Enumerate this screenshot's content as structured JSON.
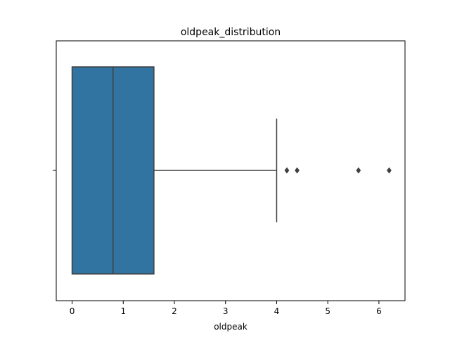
{
  "chart_data": {
    "type": "box",
    "title": "oldpeak_distribution",
    "xlabel": "oldpeak",
    "ylabel": "",
    "xlim": [
      -0.31,
      6.51
    ],
    "xticks": [
      0,
      1,
      2,
      3,
      4,
      5,
      6
    ],
    "xtick_labels": [
      "0",
      "1",
      "2",
      "3",
      "4",
      "5",
      "6"
    ],
    "orientation": "horizontal",
    "grid": false,
    "box": {
      "whisker_low": 0.0,
      "q1": 0.0,
      "median": 0.8,
      "q3": 1.6,
      "whisker_high": 4.0,
      "outliers": [
        4.2,
        4.4,
        5.6,
        6.2
      ]
    },
    "colors": {
      "box_fill": "#3274a1",
      "line": "#3f3f3f",
      "axes": "#000000"
    }
  }
}
